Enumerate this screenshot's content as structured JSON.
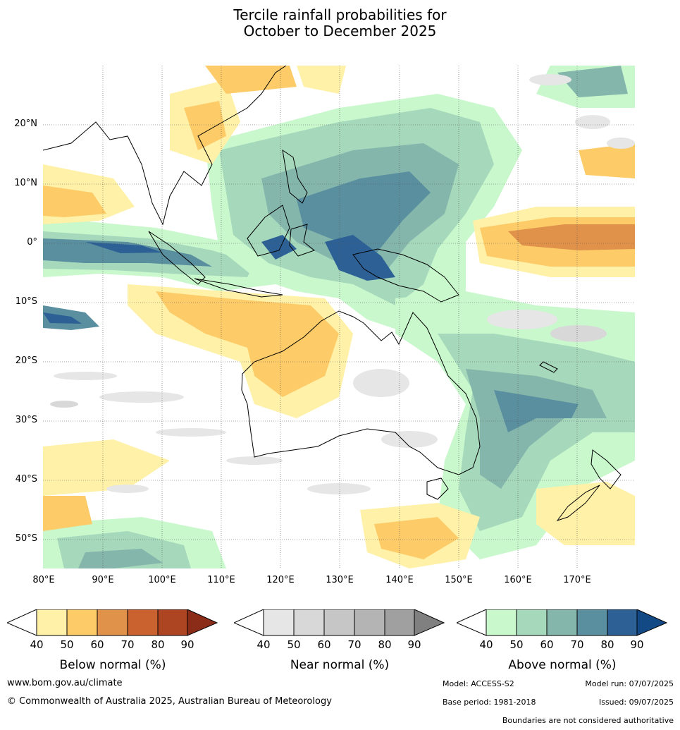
{
  "title": {
    "line1": "Tercile rainfall probabilities for",
    "line2": "October to December 2025"
  },
  "map": {
    "lon_labels": [
      "80°E",
      "90°E",
      "100°E",
      "110°E",
      "120°E",
      "130°E",
      "140°E",
      "150°E",
      "160°E",
      "170°E"
    ],
    "lat_labels": [
      "20°N",
      "10°N",
      "0°",
      "10°S",
      "20°S",
      "30°S",
      "40°S",
      "50°S"
    ],
    "lon_range": [
      80,
      180
    ],
    "lat_range": [
      -55,
      30
    ],
    "grid": true
  },
  "colorbars": [
    {
      "label": "Below normal (%)",
      "ticks": [
        "40",
        "50",
        "60",
        "70",
        "80",
        "90"
      ],
      "colors": [
        "#fff1a8",
        "#fdcb68",
        "#e0914a",
        "#c9622f",
        "#ad4523",
        "#8b2c19"
      ]
    },
    {
      "label": "Near normal (%)",
      "ticks": [
        "40",
        "50",
        "60",
        "70",
        "80",
        "90"
      ],
      "colors": [
        "#e6e6e6",
        "#d8d8d8",
        "#c6c6c6",
        "#b4b4b4",
        "#a0a0a0",
        "#808080"
      ]
    },
    {
      "label": "Above normal (%)",
      "ticks": [
        "40",
        "50",
        "60",
        "70",
        "80",
        "90"
      ],
      "colors": [
        "#c8f8cc",
        "#a6d8bc",
        "#84b6ac",
        "#5a8fa0",
        "#2d6196",
        "#134a86"
      ]
    }
  ],
  "footer": {
    "website": "www.bom.gov.au/climate",
    "copyright": "© Commonwealth of Australia 2025, Australian Bureau of Meteorology",
    "model": "Model: ACCESS-S2",
    "model_run": "Model run: 07/07/2025",
    "base_period": "Base period: 1981-2018",
    "issued": "Issued: 09/07/2025",
    "disclaimer": "Boundaries are not considered authoritative"
  }
}
